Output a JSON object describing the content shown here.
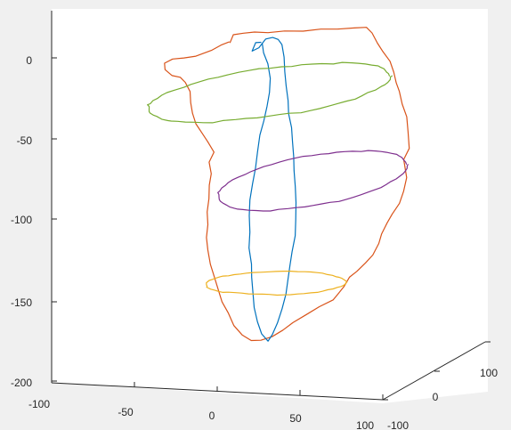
{
  "chart_data": {
    "type": "line",
    "projection": "3d",
    "title": "",
    "xlabel": "",
    "ylabel": "",
    "zlabel": "",
    "xlim": [
      -100,
      100
    ],
    "ylim": [
      -100,
      100
    ],
    "zlim": [
      -200,
      25
    ],
    "x_ticks": [
      "-100",
      "-50",
      "0",
      "50",
      "100"
    ],
    "y_ticks": [
      "-100",
      "0",
      "100"
    ],
    "z_ticks": [
      "0",
      "-50",
      "-100",
      "-150",
      "-200"
    ],
    "grid": false,
    "legend": "none",
    "colors": {
      "figure_background": "#ffffff",
      "panel_background": "#f0f0f0",
      "axes_background": "#ffffff",
      "axis_lines": "#262626"
    },
    "series": [
      {
        "color": "#D95319",
        "shape": "outer-outline",
        "z_range": [
          -160,
          13
        ]
      },
      {
        "color": "#0072BD",
        "shape": "vertical-loop",
        "z_range": [
          -175,
          10
        ]
      },
      {
        "color": "#77AC30",
        "shape": "horizontal-ring",
        "z": -17
      },
      {
        "color": "#7E2F8E",
        "shape": "horizontal-ring",
        "z": -82
      },
      {
        "color": "#EDB120",
        "shape": "horizontal-ring",
        "z": -143
      }
    ]
  }
}
